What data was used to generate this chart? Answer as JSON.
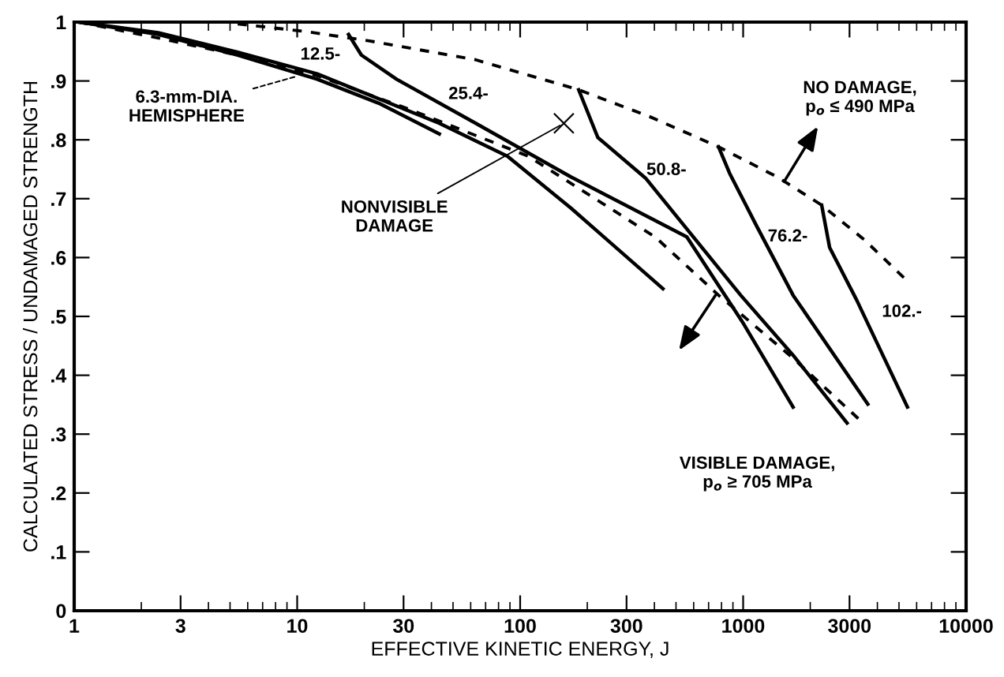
{
  "chart_data": {
    "type": "line",
    "xlabel": "EFFECTIVE KINETIC ENERGY, J",
    "ylabel": "CALCULATED STRESS / UNDAMAGED STRENGTH",
    "log": "x",
    "xlim": [
      1,
      10000
    ],
    "xticks": [
      1,
      3,
      10,
      30,
      100,
      300,
      1000,
      3000,
      10000
    ],
    "ylim": [
      0,
      1
    ],
    "yticks": [
      0,
      {
        "value": 0.1,
        "label": ".1"
      },
      {
        "value": 0.2,
        "label": ".2"
      },
      {
        "value": 0.3,
        "label": ".3"
      },
      {
        "value": 0.4,
        "label": ".4"
      },
      {
        "value": 0.5,
        "label": ".5"
      },
      {
        "value": 0.6,
        "label": ".6"
      },
      {
        "value": 0.7,
        "label": ".7"
      },
      {
        "value": 0.8,
        "label": ".8"
      },
      {
        "value": 0.9,
        "label": ".9"
      },
      1
    ],
    "grid": false,
    "marker": "none",
    "series": [
      {
        "color": "#000000",
        "line_style": "solid",
        "x": [
          1.05,
          2.38,
          5.41,
          12.3,
          23.6,
          43.4
        ],
        "values": [
          1.0,
          0.979,
          0.944,
          0.903,
          0.861,
          0.81
        ]
      },
      {
        "color": "#000000",
        "line_style": "solid",
        "x": [
          1.05,
          2.38,
          5.41,
          12.3,
          43.4,
          87.7,
          169,
          437
        ],
        "values": [
          1.0,
          0.982,
          0.949,
          0.912,
          0.828,
          0.772,
          0.684,
          0.547
        ]
      },
      {
        "color": "#000000",
        "line_style": "solid",
        "x": [
          17.0,
          19.4,
          27.9,
          63.2,
          169,
          559,
          991,
          1675
        ],
        "values": [
          0.979,
          0.944,
          0.903,
          0.828,
          0.737,
          0.635,
          0.491,
          0.346
        ]
      },
      {
        "color": "#000000",
        "line_style": "solid",
        "x": [
          183,
          223,
          365,
          975,
          1675,
          2925
        ],
        "values": [
          0.885,
          0.804,
          0.735,
          0.536,
          0.434,
          0.319
        ]
      },
      {
        "color": "#000000",
        "line_style": "solid",
        "x": [
          776,
          870,
          1148,
          1675,
          3623
        ],
        "values": [
          0.788,
          0.743,
          0.654,
          0.536,
          0.351
        ]
      },
      {
        "color": "#000000",
        "line_style": "solid",
        "x": [
          2250,
          2443,
          3228,
          5455
        ],
        "values": [
          0.689,
          0.617,
          0.528,
          0.346
        ]
      },
      {
        "color": "#000000",
        "line_style": "dashed",
        "x": [
          1.05,
          2.38,
          5.41,
          12.3,
          32.8,
          109,
          403,
          776,
          1675,
          3337
        ],
        "values": [
          1.0,
          0.973,
          0.944,
          0.909,
          0.85,
          0.772,
          0.635,
          0.536,
          0.429,
          0.324
        ]
      },
      {
        "color": "#000000",
        "line_style": "dashed",
        "x": [
          5.41,
          10.9,
          21.1,
          63.2,
          183,
          383,
          776,
          1422,
          2250,
          3501,
          5455
        ],
        "values": [
          0.997,
          0.984,
          0.968,
          0.936,
          0.885,
          0.839,
          0.788,
          0.737,
          0.689,
          0.63,
          0.56
        ]
      }
    ],
    "annotations": [
      "12.5-",
      "25.4-",
      "50.8-",
      "76.2-",
      "102.-",
      {
        "text": "6.3-mm-DIA.\nHEMISPHERE",
        "x": 10.4,
        "y": 0.91
      },
      "NONVISIBLE\nDAMAGE",
      "NO DAMAGE,\np$_{o}$ ≤ 490 MPa",
      "VISIBLE DAMAGE,\np$_{o}$ ≥ 705 MPa"
    ]
  }
}
